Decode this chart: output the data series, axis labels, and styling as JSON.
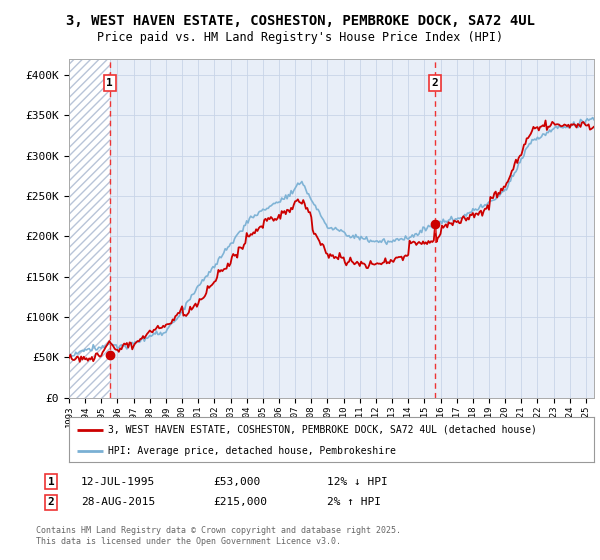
{
  "title": "3, WEST HAVEN ESTATE, COSHESTON, PEMBROKE DOCK, SA72 4UL",
  "subtitle": "Price paid vs. HM Land Registry's House Price Index (HPI)",
  "background_color": "#ffffff",
  "plot_bg_color": "#e8eef8",
  "grid_color": "#c8d4e8",
  "hatch_color": "#b8c4d8",
  "sale1_year": 1995.53,
  "sale1_price": 53000,
  "sale2_year": 2015.66,
  "sale2_price": 215000,
  "red_line_color": "#cc0000",
  "blue_line_color": "#7ab0d4",
  "dashed_line_color": "#ee3333",
  "legend1_label": "3, WEST HAVEN ESTATE, COSHESTON, PEMBROKE DOCK, SA72 4UL (detached house)",
  "legend2_label": "HPI: Average price, detached house, Pembrokeshire",
  "footer": "Contains HM Land Registry data © Crown copyright and database right 2025.\nThis data is licensed under the Open Government Licence v3.0.",
  "ylim": [
    0,
    420000
  ],
  "xlim_start": 1993.0,
  "xlim_end": 2025.5,
  "yticks": [
    0,
    50000,
    100000,
    150000,
    200000,
    250000,
    300000,
    350000,
    400000
  ],
  "ytick_labels": [
    "£0",
    "£50K",
    "£100K",
    "£150K",
    "£200K",
    "£250K",
    "£300K",
    "£350K",
    "£400K"
  ]
}
